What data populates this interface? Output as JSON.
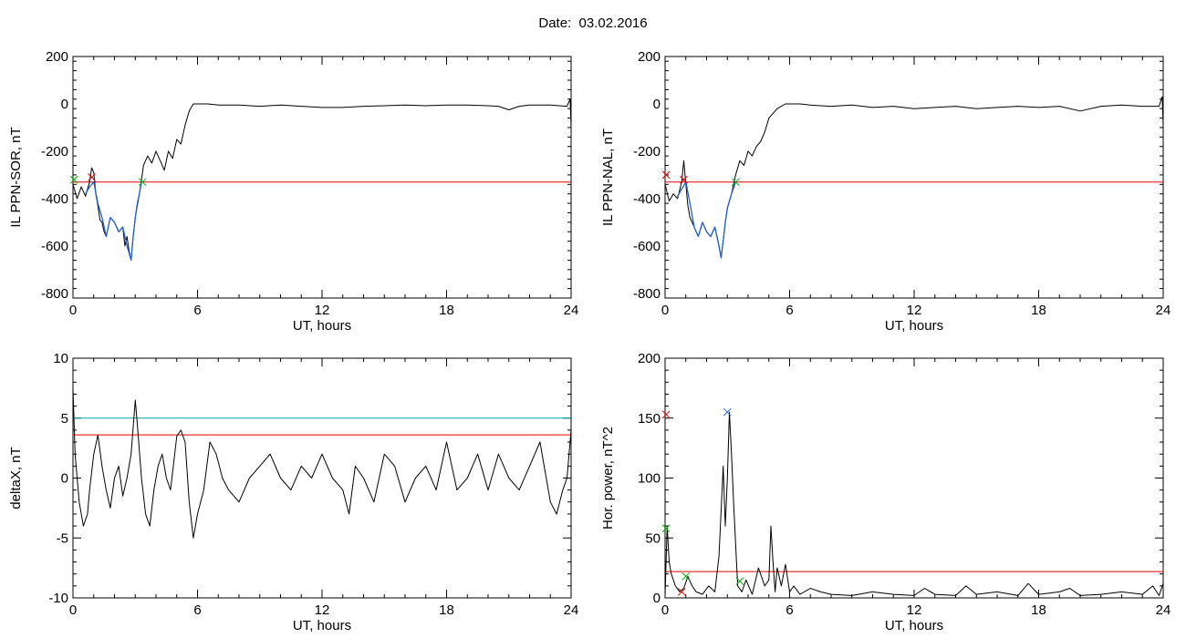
{
  "page": {
    "title": "Date:  03.02.2016"
  },
  "colors": {
    "data": "#000000",
    "threshold": "#e00000",
    "cyan": "#00a0a0",
    "blue_segment": "#1f5fd0",
    "green_marker": "#00b000",
    "red_marker": "#e00000",
    "blue_marker": "#1f5fd0"
  },
  "chart_data": [
    {
      "type": "line",
      "xlabel": "UT, hours",
      "ylabel": "IL PPN-SOR, nT",
      "xlim": [
        0,
        24
      ],
      "ylim": [
        -820,
        200
      ],
      "xticks": [
        0,
        6,
        12,
        18,
        24
      ],
      "yticks": [
        200,
        0,
        -200,
        -400,
        -600,
        -800
      ],
      "grid": false,
      "threshold": -330,
      "series": [
        {
          "color": "#000000",
          "x": [
            0,
            0.2,
            0.4,
            0.6,
            0.8,
            0.9,
            1.0,
            1.1,
            1.2,
            1.3,
            1.4,
            1.5,
            1.6,
            1.8,
            2.0,
            2.2,
            2.4,
            2.5,
            2.6,
            2.7,
            2.8,
            2.9,
            3.0,
            3.1,
            3.2,
            3.3,
            3.4,
            3.6,
            3.8,
            4.0,
            4.2,
            4.4,
            4.6,
            4.8,
            5.0,
            5.2,
            5.4,
            5.6,
            5.8,
            6.0,
            6.5,
            7,
            8,
            9,
            10,
            11,
            12,
            13,
            14,
            15,
            16,
            17,
            18,
            19,
            20,
            20.5,
            21,
            21.5,
            22,
            23,
            23.8,
            23.95,
            24
          ],
          "y": [
            -340,
            -400,
            -350,
            -390,
            -330,
            -270,
            -290,
            -380,
            -430,
            -490,
            -500,
            -540,
            -560,
            -480,
            -500,
            -540,
            -520,
            -600,
            -560,
            -620,
            -660,
            -560,
            -480,
            -430,
            -380,
            -320,
            -260,
            -220,
            -250,
            -200,
            -240,
            -280,
            -200,
            -230,
            -150,
            -170,
            -90,
            -30,
            0,
            0,
            0,
            -5,
            -5,
            -10,
            -5,
            -10,
            -15,
            -15,
            -10,
            -8,
            -5,
            -8,
            -5,
            -5,
            -8,
            -10,
            -25,
            -10,
            -5,
            -5,
            -10,
            20,
            -100
          ]
        },
        {
          "color": "#1f5fd0",
          "x": [
            0.6,
            0.8,
            1.0,
            1.2,
            1.4,
            1.6,
            1.8,
            2.0,
            2.2,
            2.4,
            2.6,
            2.8,
            2.9,
            3.0,
            3.1,
            3.2,
            3.3
          ],
          "y": [
            -380,
            -350,
            -330,
            -420,
            -480,
            -560,
            -480,
            -500,
            -540,
            -520,
            -600,
            -660,
            -560,
            -480,
            -420,
            -380,
            -330
          ]
        }
      ],
      "markers": [
        {
          "x": 0.9,
          "y": -310,
          "color": "#e00000",
          "symbol": "x"
        },
        {
          "x": 3.35,
          "y": -330,
          "color": "#00b000",
          "symbol": "x"
        },
        {
          "x": 0.05,
          "y": -320,
          "color": "#00b000",
          "symbol": "x"
        }
      ]
    },
    {
      "type": "line",
      "xlabel": "UT, hours",
      "ylabel": "IL PPN-NAL, nT",
      "xlim": [
        0,
        24
      ],
      "ylim": [
        -820,
        200
      ],
      "xticks": [
        0,
        6,
        12,
        18,
        24
      ],
      "yticks": [
        200,
        0,
        -200,
        -400,
        -600,
        -800
      ],
      "grid": false,
      "threshold": -330,
      "series": [
        {
          "color": "#000000",
          "x": [
            0,
            0.2,
            0.4,
            0.6,
            0.8,
            0.9,
            1.0,
            1.1,
            1.2,
            1.4,
            1.6,
            1.8,
            2.0,
            2.2,
            2.4,
            2.6,
            2.7,
            2.8,
            2.9,
            3.0,
            3.2,
            3.4,
            3.6,
            3.8,
            4.0,
            4.2,
            4.4,
            4.6,
            4.8,
            5.0,
            5.2,
            5.4,
            5.6,
            5.8,
            6.0,
            6.5,
            7,
            8,
            9,
            10,
            11,
            12,
            13,
            14,
            15,
            16,
            17,
            18,
            19,
            20,
            21,
            22,
            23,
            23.8,
            23.95,
            24
          ],
          "y": [
            -340,
            -410,
            -380,
            -400,
            -330,
            -240,
            -340,
            -430,
            -480,
            -520,
            -560,
            -500,
            -540,
            -560,
            -520,
            -600,
            -650,
            -580,
            -500,
            -440,
            -380,
            -300,
            -240,
            -260,
            -200,
            -220,
            -180,
            -160,
            -120,
            -60,
            -40,
            -20,
            -10,
            0,
            0,
            0,
            -5,
            -10,
            -5,
            -15,
            -10,
            -20,
            -15,
            -10,
            -20,
            -15,
            -10,
            -15,
            -10,
            -30,
            -10,
            -5,
            -10,
            -10,
            30,
            -90
          ]
        },
        {
          "color": "#1f5fd0",
          "x": [
            0.6,
            0.8,
            1.0,
            1.2,
            1.4,
            1.6,
            1.8,
            2.0,
            2.2,
            2.4,
            2.6,
            2.7,
            2.8,
            2.9,
            3.0,
            3.2,
            3.4
          ],
          "y": [
            -390,
            -360,
            -330,
            -420,
            -520,
            -560,
            -500,
            -540,
            -560,
            -520,
            -600,
            -650,
            -580,
            -500,
            -440,
            -380,
            -330
          ]
        }
      ],
      "markers": [
        {
          "x": 0.05,
          "y": -300,
          "color": "#e00000",
          "symbol": "x"
        },
        {
          "x": 0.9,
          "y": -320,
          "color": "#e00000",
          "symbol": "x"
        },
        {
          "x": 3.4,
          "y": -330,
          "color": "#00b000",
          "symbol": "x"
        }
      ]
    },
    {
      "type": "line",
      "xlabel": "UT, hours",
      "ylabel": "deltaX, nT",
      "xlim": [
        0,
        24
      ],
      "ylim": [
        -10,
        10
      ],
      "xticks": [
        0,
        6,
        12,
        18,
        24
      ],
      "yticks": [
        10,
        5,
        0,
        -5,
        -10
      ],
      "grid": false,
      "thresholds": [
        {
          "y": 5.0,
          "color": "#00a0a0"
        },
        {
          "y": 3.6,
          "color": "#e00000"
        }
      ],
      "series": [
        {
          "color": "#000000",
          "x": [
            0,
            0.1,
            0.3,
            0.5,
            0.7,
            0.8,
            1.0,
            1.2,
            1.4,
            1.6,
            1.8,
            2.0,
            2.2,
            2.4,
            2.6,
            2.8,
            3.0,
            3.1,
            3.3,
            3.5,
            3.7,
            3.9,
            4.1,
            4.3,
            4.5,
            4.7,
            5.0,
            5.2,
            5.4,
            5.6,
            5.8,
            6.0,
            6.3,
            6.6,
            6.9,
            7.2,
            7.5,
            8,
            8.5,
            9,
            9.5,
            10,
            10.5,
            11,
            11.5,
            12,
            12.5,
            13,
            13.3,
            13.6,
            14,
            14.5,
            15,
            15.5,
            16,
            16.5,
            17,
            17.5,
            18,
            18.5,
            19,
            19.5,
            20,
            20.5,
            21,
            21.5,
            22,
            22.5,
            23,
            23.3,
            23.6,
            23.8,
            24
          ],
          "y": [
            7.5,
            2,
            -2,
            -4,
            -3,
            -1,
            2,
            3.6,
            1,
            -1,
            -2.5,
            0,
            1,
            -1.5,
            0,
            2,
            6.5,
            4.5,
            0,
            -3,
            -4,
            -1,
            1,
            2,
            0,
            -1,
            3.5,
            4,
            3,
            -2,
            -5,
            -3,
            -1,
            3,
            2,
            0,
            -1,
            -2,
            0,
            1,
            2,
            0,
            -1,
            1,
            0,
            2,
            0,
            -1,
            -3,
            1,
            0,
            -2,
            2,
            1,
            -2,
            0,
            1,
            -1,
            3,
            -1,
            0,
            2,
            -1,
            2,
            0,
            -1,
            1,
            3,
            -2,
            -3,
            -1,
            0,
            4
          ]
        }
      ]
    },
    {
      "type": "line",
      "xlabel": "UT, hours",
      "ylabel": "Hor. power, nT^2",
      "xlim": [
        0,
        24
      ],
      "ylim": [
        0,
        200
      ],
      "xticks": [
        0,
        6,
        12,
        18,
        24
      ],
      "yticks": [
        200,
        150,
        100,
        50,
        0
      ],
      "grid": false,
      "threshold": 22,
      "series": [
        {
          "color": "#000000",
          "x": [
            0,
            0.1,
            0.2,
            0.3,
            0.5,
            0.7,
            0.9,
            1.1,
            1.3,
            1.5,
            1.8,
            2.1,
            2.4,
            2.6,
            2.8,
            2.9,
            3.0,
            3.1,
            3.2,
            3.3,
            3.5,
            3.7,
            3.9,
            4.2,
            4.5,
            4.8,
            5.0,
            5.1,
            5.2,
            5.3,
            5.4,
            5.6,
            5.8,
            6.0,
            6.2,
            6.5,
            7,
            7.5,
            8,
            9,
            10,
            11,
            12,
            12.5,
            13,
            14,
            14.5,
            15,
            16,
            17,
            17.5,
            18,
            19,
            19.5,
            20,
            21,
            22,
            23,
            23.5,
            23.8,
            24
          ],
          "y": [
            2,
            60,
            30,
            20,
            10,
            5,
            8,
            18,
            10,
            5,
            3,
            10,
            5,
            35,
            110,
            60,
            100,
            155,
            120,
            80,
            10,
            5,
            15,
            3,
            25,
            10,
            15,
            60,
            30,
            5,
            25,
            10,
            28,
            5,
            10,
            3,
            8,
            5,
            3,
            2,
            5,
            3,
            2,
            8,
            3,
            2,
            10,
            3,
            5,
            2,
            12,
            3,
            5,
            8,
            2,
            3,
            5,
            3,
            10,
            2,
            12
          ]
        }
      ],
      "markers": [
        {
          "x": 0.05,
          "y": 153,
          "color": "#e00000",
          "symbol": "x"
        },
        {
          "x": 0.8,
          "y": 5,
          "color": "#e00000",
          "symbol": "x"
        },
        {
          "x": 3.0,
          "y": 155,
          "color": "#1f5fd0",
          "symbol": "x"
        },
        {
          "x": 1.0,
          "y": 18,
          "color": "#00b000",
          "symbol": "x"
        },
        {
          "x": 3.6,
          "y": 14,
          "color": "#00b000",
          "symbol": "x"
        },
        {
          "x": 0.05,
          "y": 58,
          "color": "#00b000",
          "symbol": "x"
        }
      ]
    }
  ]
}
